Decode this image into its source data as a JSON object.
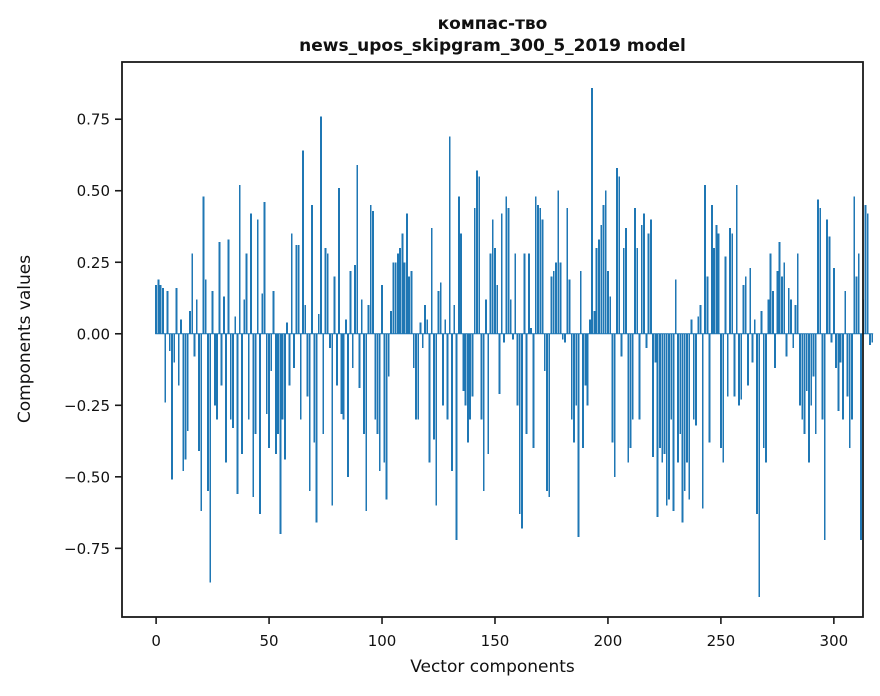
{
  "figure": {
    "background": "#ffffff",
    "title_line1": "компас-тво",
    "title_line2": "news_upos_skipgram_300_5_2019 model"
  },
  "chart_data": {
    "type": "bar",
    "title": "компас-тво\nnews_upos_skipgram_300_5_2019 model",
    "xlabel": "Vector components",
    "ylabel": "Components values",
    "bar_color": "#1f77b4",
    "axis_color": "#1a1a1a",
    "grid": false,
    "legend": false,
    "x_start": 0,
    "bar_width": 0.8,
    "xlim": [
      -15.1,
      312.9
    ],
    "ylim": [
      -0.99,
      0.95
    ],
    "x_ticks": [
      0,
      50,
      100,
      150,
      200,
      250,
      300
    ],
    "x_tick_labels": [
      "0",
      "50",
      "100",
      "150",
      "200",
      "250",
      "300"
    ],
    "y_ticks": [
      -0.75,
      -0.5,
      -0.25,
      0,
      0.25,
      0.5,
      0.75
    ],
    "y_tick_labels": [
      "−0.75",
      "−0.50",
      "−0.25",
      "0.00",
      "0.25",
      "0.50",
      "0.75"
    ],
    "values": [
      0.17,
      0.19,
      0.17,
      0.16,
      -0.24,
      0.15,
      -0.06,
      -0.51,
      -0.1,
      0.16,
      -0.18,
      0.05,
      -0.48,
      -0.44,
      -0.34,
      0.08,
      0.28,
      -0.08,
      0.12,
      -0.41,
      -0.62,
      0.48,
      0.19,
      -0.55,
      -0.87,
      0.15,
      -0.25,
      -0.3,
      0.32,
      -0.18,
      0.13,
      -0.45,
      0.33,
      -0.3,
      -0.33,
      0.06,
      -0.56,
      0.52,
      -0.42,
      0.12,
      0.28,
      -0.3,
      0.42,
      -0.57,
      -0.35,
      0.4,
      -0.63,
      0.14,
      0.46,
      -0.28,
      -0.4,
      -0.13,
      0.15,
      -0.42,
      -0.35,
      -0.7,
      -0.3,
      -0.44,
      0.04,
      -0.18,
      0.35,
      -0.12,
      0.31,
      0.31,
      -0.3,
      0.64,
      0.1,
      -0.22,
      -0.55,
      0.45,
      -0.38,
      -0.66,
      0.07,
      0.76,
      -0.35,
      0.3,
      0.28,
      -0.05,
      -0.6,
      0.2,
      -0.18,
      0.51,
      -0.28,
      -0.3,
      0.05,
      -0.5,
      0.22,
      -0.12,
      0.24,
      0.59,
      -0.19,
      0.12,
      -0.35,
      -0.62,
      0.1,
      0.45,
      0.43,
      -0.3,
      -0.35,
      -0.48,
      0.17,
      -0.45,
      -0.58,
      -0.15,
      0.08,
      0.25,
      0.25,
      0.28,
      0.3,
      0.35,
      0.25,
      0.42,
      0.2,
      0.22,
      -0.12,
      -0.3,
      -0.3,
      0.04,
      -0.05,
      0.1,
      0.05,
      -0.45,
      0.37,
      -0.37,
      -0.6,
      0.15,
      0.18,
      -0.25,
      0.05,
      -0.3,
      0.69,
      -0.48,
      0.1,
      -0.72,
      0.48,
      0.35,
      -0.2,
      -0.25,
      -0.38,
      -0.3,
      -0.22,
      0.44,
      0.57,
      0.55,
      -0.3,
      -0.55,
      0.12,
      -0.42,
      0.28,
      0.4,
      0.3,
      0.17,
      -0.21,
      0.42,
      -0.03,
      0.48,
      0.44,
      0.12,
      -0.02,
      0.28,
      -0.25,
      -0.63,
      -0.68,
      0.28,
      -0.35,
      0.28,
      0.02,
      -0.4,
      0.48,
      0.45,
      0.44,
      0.4,
      -0.13,
      -0.55,
      -0.57,
      0.2,
      0.22,
      0.25,
      0.5,
      0.25,
      -0.02,
      -0.03,
      0.44,
      0.19,
      -0.3,
      -0.38,
      -0.25,
      -0.71,
      0.22,
      -0.4,
      -0.18,
      -0.25,
      0.05,
      0.86,
      0.08,
      0.3,
      0.33,
      0.38,
      0.45,
      0.5,
      0.22,
      0.13,
      -0.38,
      -0.5,
      0.58,
      0.55,
      -0.08,
      0.3,
      0.37,
      -0.45,
      -0.4,
      -0.3,
      0.44,
      0.3,
      -0.3,
      0.38,
      0.42,
      -0.05,
      0.35,
      0.4,
      -0.43,
      -0.1,
      -0.64,
      -0.4,
      -0.45,
      -0.42,
      -0.6,
      -0.58,
      -0.3,
      -0.62,
      0.19,
      -0.45,
      -0.35,
      -0.66,
      -0.55,
      -0.45,
      -0.58,
      0.05,
      -0.3,
      -0.32,
      0.06,
      0.1,
      -0.61,
      0.52,
      0.2,
      -0.38,
      0.45,
      0.3,
      0.38,
      0.35,
      -0.4,
      -0.45,
      0.27,
      -0.22,
      0.37,
      0.35,
      -0.22,
      0.52,
      -0.25,
      -0.23,
      0.17,
      0.2,
      -0.18,
      0.23,
      -0.1,
      0.05,
      -0.63,
      -0.92,
      0.08,
      -0.4,
      -0.45,
      0.12,
      0.28,
      0.15,
      -0.12,
      0.22,
      0.32,
      0.2,
      0.25,
      -0.08,
      0.16,
      0.12,
      -0.05,
      0.1,
      0.28,
      -0.25,
      -0.3,
      -0.35,
      -0.2,
      -0.45,
      -0.25,
      -0.15,
      -0.35,
      0.47,
      0.44,
      -0.3,
      -0.72,
      0.4,
      0.34,
      -0.03,
      0.23,
      -0.12,
      -0.27,
      -0.1,
      -0.3,
      0.15,
      -0.22,
      -0.4,
      -0.3,
      0.48,
      0.2,
      0.28,
      -0.72,
      0.12,
      0.45,
      0.42,
      -0.04,
      -0.03
    ]
  }
}
